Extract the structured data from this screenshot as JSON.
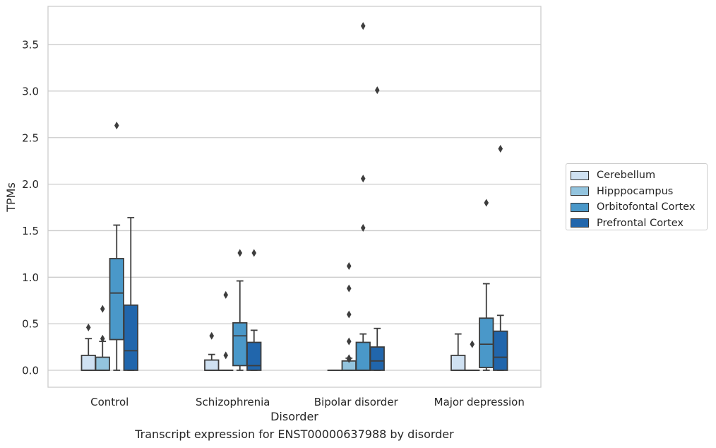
{
  "chart_data": {
    "type": "box",
    "title": "",
    "caption": "Transcript expression for ENST00000637988 by disorder",
    "xlabel": "Disorder",
    "ylabel": "TPMs",
    "ylim": [
      -0.18,
      3.9
    ],
    "yticks": [
      "0.0",
      "0.5",
      "1.0",
      "1.5",
      "2.0",
      "2.5",
      "3.0",
      "3.5"
    ],
    "categories": [
      "Control",
      "Schizophrenia",
      "Bipolar disorder",
      "Major depression"
    ],
    "grid": "horizontal",
    "legend_position": "right",
    "series": [
      {
        "name": "Cerebellum",
        "color": "#cfe1f2",
        "boxes": [
          {
            "min": 0.0,
            "q1": 0.0,
            "median": 0.0,
            "q3": 0.16,
            "max": 0.34,
            "outliers": [
              0.46
            ]
          },
          {
            "min": 0.0,
            "q1": 0.0,
            "median": 0.0,
            "q3": 0.11,
            "max": 0.17,
            "outliers": [
              0.37
            ]
          },
          {
            "min": 0.0,
            "q1": 0.0,
            "median": 0.0,
            "q3": 0.0,
            "max": 0.0,
            "outliers": []
          },
          {
            "min": 0.0,
            "q1": 0.0,
            "median": 0.0,
            "q3": 0.16,
            "max": 0.39,
            "outliers": []
          }
        ]
      },
      {
        "name": "Hipppocampus",
        "color": "#93c4de",
        "boxes": [
          {
            "min": 0.0,
            "q1": 0.0,
            "median": 0.0,
            "q3": 0.14,
            "max": 0.31,
            "outliers": [
              0.34,
              0.66
            ]
          },
          {
            "min": 0.0,
            "q1": 0.0,
            "median": 0.0,
            "q3": 0.0,
            "max": 0.0,
            "outliers": [
              0.16,
              0.81
            ]
          },
          {
            "min": 0.0,
            "q1": 0.0,
            "median": 0.0,
            "q3": 0.1,
            "max": 0.13,
            "outliers": [
              0.12,
              0.13,
              0.31,
              0.6,
              0.88,
              1.12
            ]
          },
          {
            "min": 0.0,
            "q1": 0.0,
            "median": 0.0,
            "q3": 0.0,
            "max": 0.0,
            "outliers": [
              0.28
            ]
          }
        ]
      },
      {
        "name": "Orbitofontal Cortex",
        "color": "#4a98c9",
        "boxes": [
          {
            "min": 0.0,
            "q1": 0.33,
            "median": 0.83,
            "q3": 1.2,
            "max": 1.56,
            "outliers": [
              2.63
            ]
          },
          {
            "min": 0.0,
            "q1": 0.05,
            "median": 0.37,
            "q3": 0.51,
            "max": 0.96,
            "outliers": [
              1.26
            ]
          },
          {
            "min": 0.0,
            "q1": 0.0,
            "median": 0.0,
            "q3": 0.3,
            "max": 0.39,
            "outliers": [
              1.53,
              2.06,
              3.7
            ]
          },
          {
            "min": 0.0,
            "q1": 0.03,
            "median": 0.28,
            "q3": 0.56,
            "max": 0.93,
            "outliers": [
              1.8
            ]
          }
        ]
      },
      {
        "name": "Prefrontal Cortex",
        "color": "#2166ac",
        "boxes": [
          {
            "min": 0.0,
            "q1": 0.0,
            "median": 0.21,
            "q3": 0.7,
            "max": 1.64,
            "outliers": []
          },
          {
            "min": 0.0,
            "q1": 0.0,
            "median": 0.05,
            "q3": 0.3,
            "max": 0.43,
            "outliers": [
              1.26
            ]
          },
          {
            "min": 0.0,
            "q1": 0.0,
            "median": 0.1,
            "q3": 0.25,
            "max": 0.45,
            "outliers": [
              3.01
            ]
          },
          {
            "min": 0.0,
            "q1": 0.0,
            "median": 0.14,
            "q3": 0.42,
            "max": 0.59,
            "outliers": [
              2.38
            ]
          }
        ]
      }
    ]
  }
}
